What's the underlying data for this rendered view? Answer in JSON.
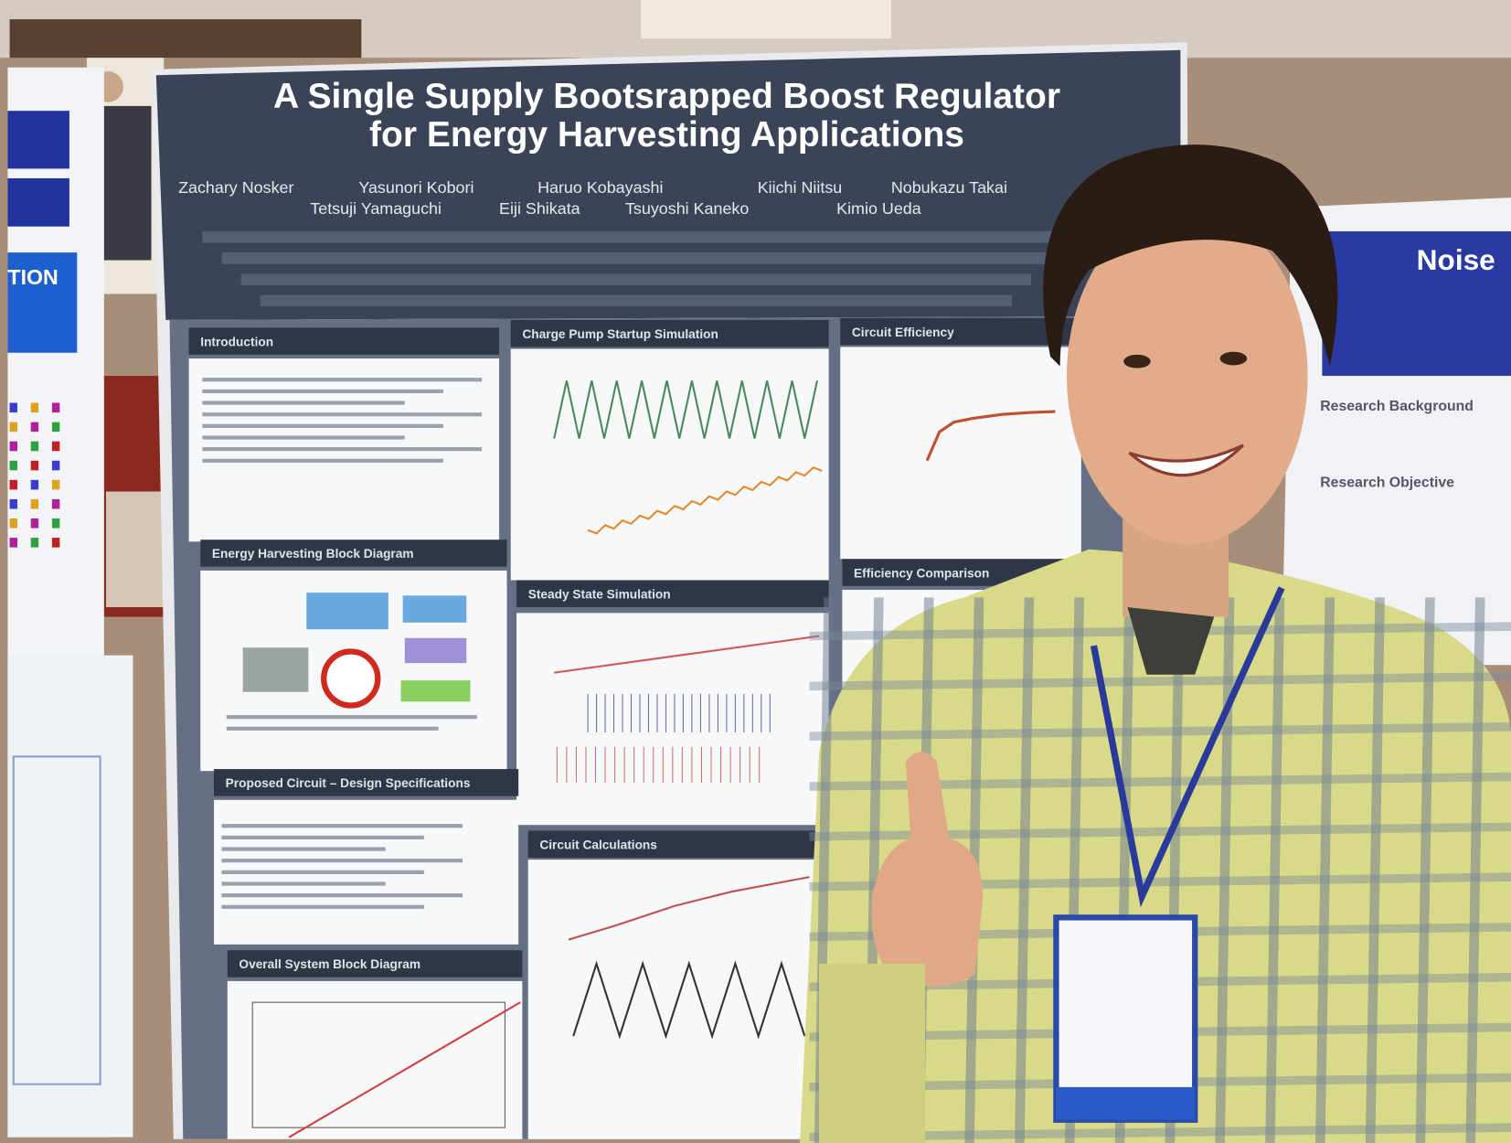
{
  "poster": {
    "title_lines": [
      "A Single Supply Bootsrapped Boost Regulator",
      "for Energy Harvesting Applications"
    ],
    "authors": [
      [
        "Zachary Nosker",
        "Yasunori Kobori",
        "Haruo Kobayashi",
        "Kiichi Niitsu",
        "Nobukazu Takai"
      ],
      [
        "Tetsuji Yamaguchi",
        "Eiji Shikata",
        "Tsuyoshi Kaneko",
        "Kimio Ueda"
      ]
    ],
    "sections": [
      "Introduction",
      "Charge Pump Startup Simulation",
      "Circuit Efficiency",
      "Energy Harvesting Block Diagram",
      "Steady State Simulation",
      "Efficiency Comparison",
      "Proposed Circuit – Design Specifications",
      "Circuit Calculations",
      "Overall System Block Diagram"
    ]
  },
  "right_poster": {
    "title": "Noise",
    "sections": [
      "Research Background",
      "Research Objective"
    ]
  },
  "left_poster": {
    "heading": "TION"
  }
}
